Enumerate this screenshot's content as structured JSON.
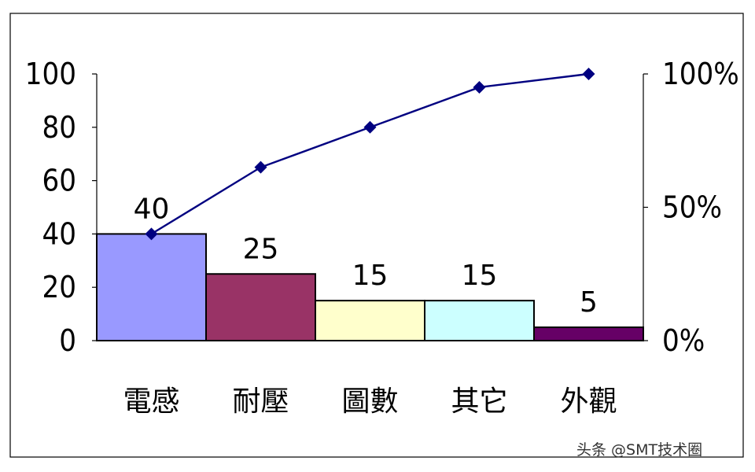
{
  "chart_data": {
    "type": "bar",
    "categories": [
      "電感",
      "耐壓",
      "圖數",
      "其它",
      "外觀"
    ],
    "values": [
      40,
      25,
      15,
      15,
      5
    ],
    "cumulative_percent": [
      40,
      65,
      80,
      95,
      100
    ],
    "ylim": [
      0,
      100
    ],
    "y_ticks": [
      "0",
      "20",
      "40",
      "60",
      "80",
      "100"
    ],
    "y2lim": [
      0,
      100
    ],
    "y2_ticks": [
      "0%",
      "50%",
      "100%"
    ],
    "bar_colors": [
      "#9999ff",
      "#993366",
      "#ffffcc",
      "#ccffff",
      "#660066"
    ],
    "line_color": "#000080",
    "grid": false,
    "legend": "none"
  },
  "watermark": "头条 @SMT技术圈"
}
